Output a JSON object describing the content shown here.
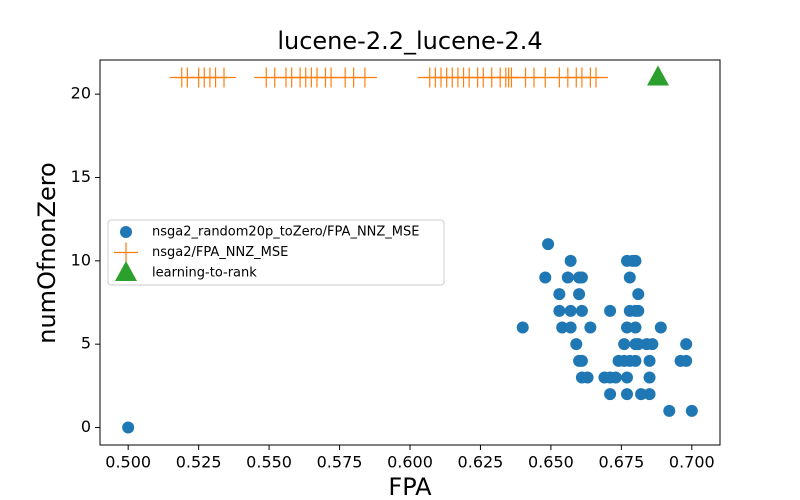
{
  "chart_data": {
    "type": "scatter",
    "title": "lucene-2.2_lucene-2.4",
    "x_label": "FPA",
    "y_label": "numOfnonZero",
    "xlim": [
      0.49,
      0.71
    ],
    "ylim": [
      -1.05,
      22.05
    ],
    "xticks": [
      {
        "value": 0.5,
        "label": "0.500"
      },
      {
        "value": 0.525,
        "label": "0.525"
      },
      {
        "value": 0.55,
        "label": "0.550"
      },
      {
        "value": 0.575,
        "label": "0.575"
      },
      {
        "value": 0.6,
        "label": "0.600"
      },
      {
        "value": 0.625,
        "label": "0.625"
      },
      {
        "value": 0.65,
        "label": "0.650"
      },
      {
        "value": 0.675,
        "label": "0.675"
      },
      {
        "value": 0.7,
        "label": "0.700"
      }
    ],
    "yticks": [
      0,
      5,
      10,
      15,
      20
    ],
    "legend": "center left",
    "series": [
      {
        "name": "nsga2_random20p_toZero/FPA_NNZ_MSE",
        "color": "#1f77b4",
        "marker": "circle",
        "x": [
          0.5,
          0.649,
          0.648,
          0.653,
          0.657,
          0.656,
          0.66,
          0.661,
          0.66,
          0.653,
          0.657,
          0.661,
          0.64,
          0.654,
          0.657,
          0.664,
          0.659,
          0.66,
          0.661,
          0.661,
          0.663,
          0.669,
          0.671,
          0.673,
          0.677,
          0.671,
          0.671,
          0.677,
          0.679,
          0.68,
          0.678,
          0.681,
          0.678,
          0.68,
          0.681,
          0.677,
          0.68,
          0.689,
          0.676,
          0.68,
          0.681,
          0.684,
          0.686,
          0.698,
          0.674,
          0.676,
          0.678,
          0.68,
          0.685,
          0.696,
          0.698,
          0.677,
          0.682,
          0.685,
          0.685,
          0.692,
          0.7
        ],
        "y": [
          0,
          11,
          9,
          8,
          10,
          9,
          9,
          9,
          8,
          7,
          7,
          7,
          6,
          6,
          6,
          6,
          5,
          4,
          4,
          3,
          3,
          3,
          3,
          3,
          3,
          2,
          7,
          10,
          10,
          10,
          9,
          8,
          7,
          7,
          7,
          6,
          6,
          6,
          5,
          5,
          5,
          5,
          5,
          5,
          4,
          4,
          4,
          4,
          4,
          4,
          4,
          2,
          2,
          2,
          3,
          1,
          1
        ]
      },
      {
        "name": "nsga2/FPA_NNZ_MSE",
        "color": "#ff7f0e",
        "marker": "plus",
        "x": [
          0.519,
          0.521,
          0.525,
          0.527,
          0.529,
          0.531,
          0.534,
          0.549,
          0.552,
          0.556,
          0.558,
          0.561,
          0.563,
          0.565,
          0.567,
          0.57,
          0.572,
          0.577,
          0.58,
          0.584,
          0.607,
          0.609,
          0.611,
          0.613,
          0.615,
          0.617,
          0.619,
          0.621,
          0.624,
          0.626,
          0.629,
          0.632,
          0.634,
          0.635,
          0.636,
          0.641,
          0.644,
          0.648,
          0.653,
          0.656,
          0.659,
          0.661,
          0.664,
          0.666
        ],
        "y": [
          21,
          21,
          21,
          21,
          21,
          21,
          21,
          21,
          21,
          21,
          21,
          21,
          21,
          21,
          21,
          21,
          21,
          21,
          21,
          21,
          21,
          21,
          21,
          21,
          21,
          21,
          21,
          21,
          21,
          21,
          21,
          21,
          21,
          21,
          21,
          21,
          21,
          21,
          21,
          21,
          21,
          21,
          21,
          21
        ]
      },
      {
        "name": "learning-to-rank",
        "color": "#2ca02c",
        "marker": "triangle",
        "x": [
          0.688
        ],
        "y": [
          21
        ]
      }
    ]
  }
}
